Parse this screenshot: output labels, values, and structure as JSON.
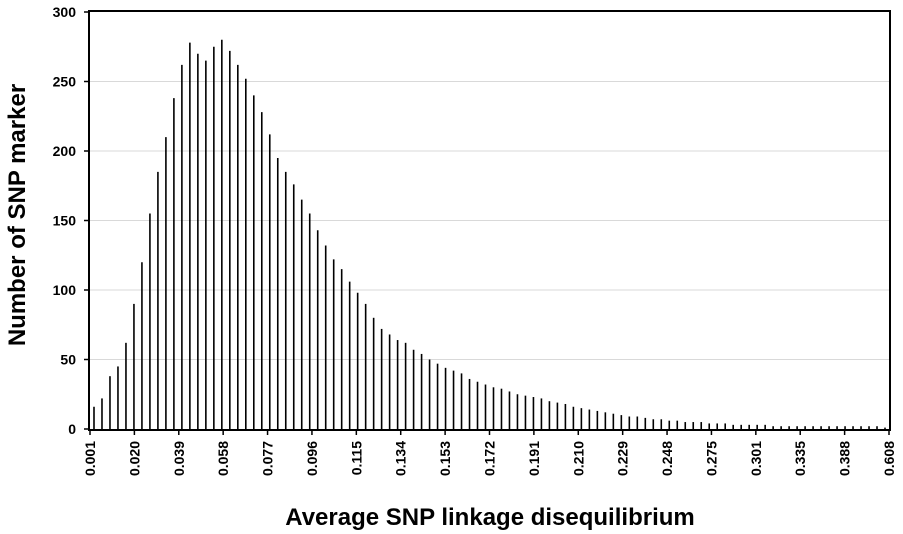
{
  "chart_data": {
    "type": "bar",
    "title": "",
    "xlabel": "Average SNP linkage disequilibrium",
    "ylabel": "Number of SNP marker",
    "ylim": [
      0,
      300
    ],
    "yticks": [
      "0",
      "50",
      "100",
      "150",
      "200",
      "250",
      "300"
    ],
    "xtick_labels": [
      "0.001",
      "0.020",
      "0.039",
      "0.058",
      "0.077",
      "0.096",
      "0.115",
      "0.134",
      "0.153",
      "0.172",
      "0.191",
      "0.210",
      "0.229",
      "0.248",
      "0.275",
      "0.301",
      "0.335",
      "0.388",
      "0.608"
    ],
    "grid": "horizontal",
    "bar_color": "#000000",
    "values": [
      16,
      22,
      38,
      45,
      62,
      90,
      120,
      155,
      185,
      210,
      238,
      262,
      278,
      270,
      265,
      275,
      280,
      272,
      262,
      252,
      240,
      228,
      212,
      195,
      185,
      176,
      165,
      155,
      143,
      132,
      122,
      115,
      106,
      98,
      90,
      80,
      72,
      68,
      64,
      62,
      57,
      54,
      50,
      47,
      44,
      42,
      40,
      36,
      34,
      32,
      30,
      29,
      27,
      25,
      24,
      23,
      22,
      20,
      19,
      18,
      16,
      15,
      14,
      13,
      12,
      11,
      10,
      9,
      9,
      8,
      7,
      7,
      6,
      6,
      5,
      5,
      5,
      4,
      4,
      4,
      3,
      3,
      3,
      3,
      3,
      2,
      2,
      2,
      2,
      2,
      2,
      2,
      2,
      2,
      2,
      2,
      2,
      2,
      2,
      1
    ]
  }
}
